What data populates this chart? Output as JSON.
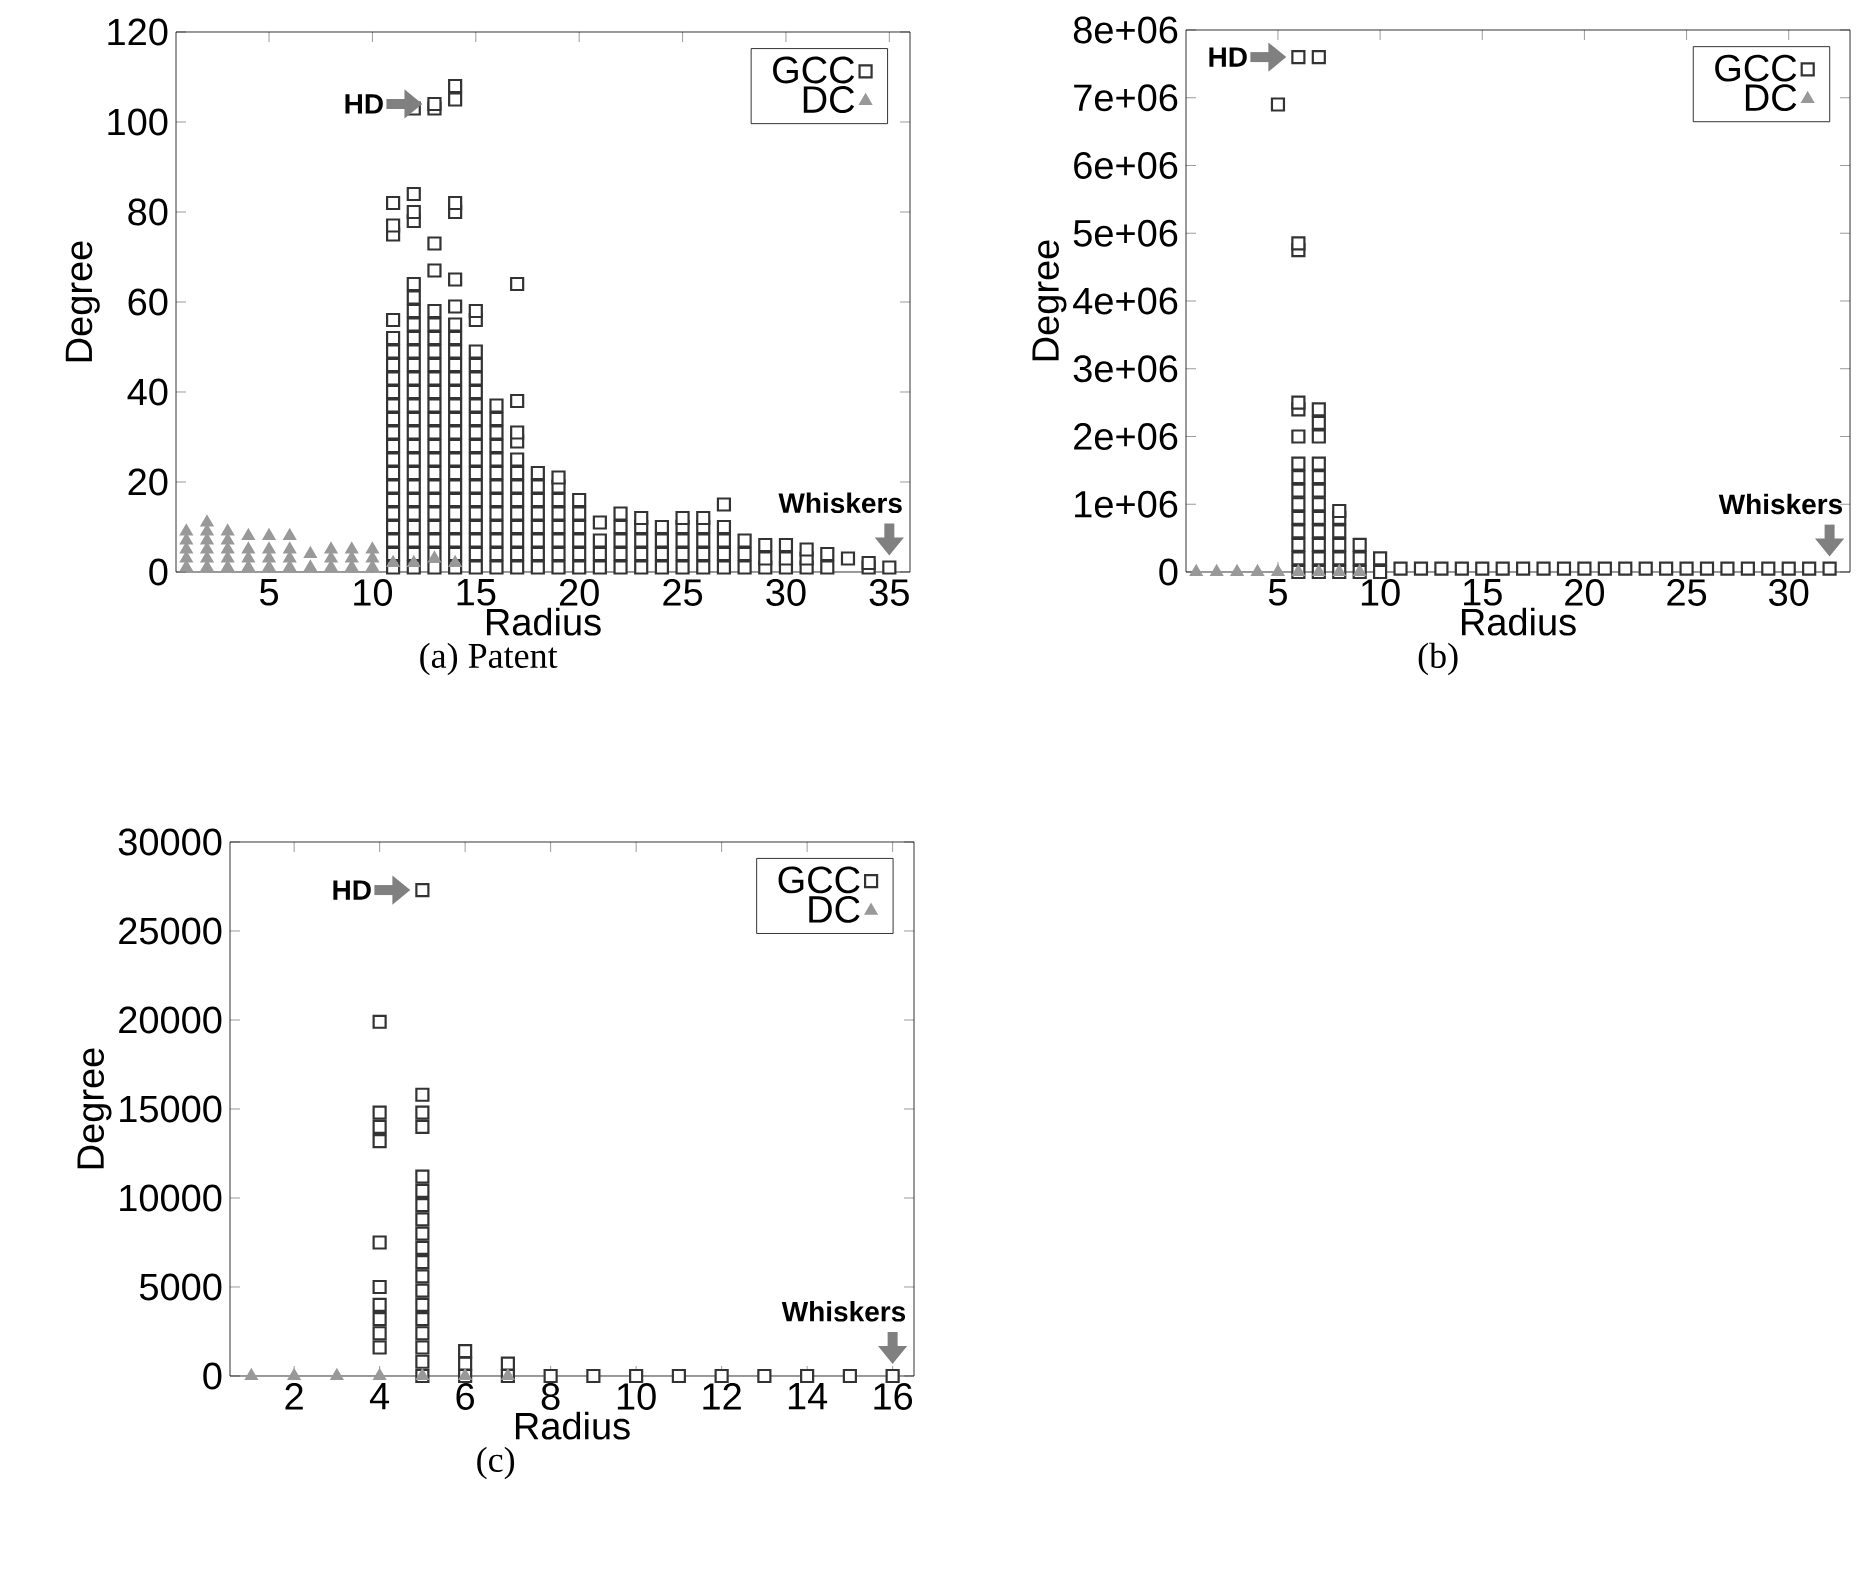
{
  "chart_data": [
    {
      "type": "scatter",
      "title": "(a) Patent",
      "xlabel": "Radius",
      "ylabel": "Degree",
      "xlim": [
        0.5,
        36
      ],
      "xticks": [
        5,
        10,
        15,
        20,
        25,
        30,
        35
      ],
      "ylim": [
        0,
        120
      ],
      "yticks": [
        0,
        20,
        40,
        60,
        80,
        100,
        120
      ],
      "legend": "top right",
      "annotations": [
        {
          "text": "HD",
          "x": 13,
          "y": 104
        },
        {
          "text": "Whiskers",
          "x": 35,
          "y": 1
        }
      ],
      "series": [
        {
          "name": "GCC",
          "color": "#333333",
          "marker": "square",
          "x": [
            11,
            11,
            11,
            11,
            11,
            11,
            11,
            11,
            11,
            11,
            11,
            11,
            11,
            11,
            11,
            11,
            11,
            11,
            11,
            11,
            11,
            11,
            12,
            12,
            12,
            12,
            12,
            12,
            12,
            12,
            12,
            12,
            12,
            12,
            12,
            12,
            12,
            12,
            12,
            12,
            12,
            12,
            12,
            12,
            12,
            12,
            12,
            12,
            13,
            13,
            13,
            13,
            13,
            13,
            13,
            13,
            13,
            13,
            13,
            13,
            13,
            13,
            13,
            13,
            13,
            13,
            13,
            13,
            13,
            13,
            13,
            13,
            14,
            14,
            14,
            14,
            14,
            14,
            14,
            14,
            14,
            14,
            14,
            14,
            14,
            14,
            14,
            14,
            14,
            14,
            14,
            14,
            14,
            14,
            14,
            14,
            14,
            15,
            15,
            15,
            15,
            15,
            15,
            15,
            15,
            15,
            15,
            15,
            15,
            15,
            15,
            15,
            15,
            15,
            15,
            15,
            16,
            16,
            16,
            16,
            16,
            16,
            16,
            16,
            16,
            16,
            16,
            16,
            16,
            17,
            17,
            17,
            17,
            17,
            17,
            17,
            17,
            17,
            17,
            17,
            17,
            17,
            18,
            18,
            18,
            18,
            18,
            18,
            18,
            18,
            19,
            19,
            19,
            19,
            19,
            19,
            19,
            19,
            20,
            20,
            20,
            20,
            20,
            20,
            21,
            21,
            21,
            21,
            22,
            22,
            22,
            22,
            22,
            23,
            23,
            23,
            23,
            23,
            24,
            24,
            24,
            24,
            25,
            25,
            25,
            25,
            25,
            26,
            26,
            26,
            26,
            26,
            27,
            27,
            27,
            27,
            27,
            28,
            28,
            28,
            29,
            29,
            29,
            30,
            30,
            30,
            31,
            31,
            31,
            32,
            32,
            33,
            34,
            34,
            35
          ],
          "values": [
            1,
            4,
            7,
            10,
            13,
            16,
            19,
            22,
            25,
            28,
            31,
            34,
            37,
            40,
            43,
            46,
            49,
            52,
            56,
            75,
            77,
            82,
            1,
            4,
            7,
            10,
            13,
            16,
            19,
            22,
            25,
            28,
            31,
            34,
            37,
            40,
            43,
            46,
            49,
            52,
            55,
            58,
            61,
            64,
            78,
            80,
            84,
            103,
            1,
            4,
            7,
            10,
            13,
            16,
            19,
            22,
            25,
            28,
            31,
            34,
            37,
            40,
            43,
            46,
            49,
            52,
            55,
            58,
            67,
            73,
            103,
            104,
            1,
            4,
            7,
            10,
            13,
            16,
            19,
            22,
            25,
            28,
            31,
            34,
            37,
            40,
            43,
            46,
            49,
            52,
            55,
            59,
            65,
            80,
            82,
            105,
            108,
            1,
            4,
            7,
            10,
            13,
            16,
            19,
            22,
            25,
            28,
            31,
            34,
            37,
            40,
            43,
            46,
            49,
            56,
            58,
            1,
            4,
            7,
            10,
            13,
            16,
            19,
            22,
            25,
            28,
            31,
            34,
            37,
            1,
            4,
            7,
            10,
            13,
            16,
            19,
            22,
            25,
            29,
            31,
            38,
            64,
            1,
            4,
            7,
            10,
            13,
            16,
            19,
            22,
            1,
            4,
            7,
            10,
            13,
            16,
            19,
            21,
            1,
            4,
            7,
            10,
            13,
            16,
            1,
            4,
            7,
            11,
            1,
            4,
            7,
            10,
            13,
            1,
            4,
            7,
            10,
            12,
            1,
            4,
            7,
            10,
            1,
            4,
            7,
            10,
            12,
            1,
            4,
            7,
            10,
            12,
            1,
            4,
            7,
            10,
            15,
            1,
            4,
            7,
            1,
            3,
            6,
            1,
            3,
            6,
            1,
            3,
            5,
            1,
            4,
            3,
            1,
            2,
            1
          ]
        },
        {
          "name": "DC",
          "color": "#999999",
          "marker": "triangle",
          "x": [
            1,
            1,
            1,
            1,
            1,
            2,
            2,
            2,
            2,
            2,
            2,
            3,
            3,
            3,
            3,
            3,
            4,
            4,
            4,
            4,
            5,
            5,
            5,
            5,
            6,
            6,
            6,
            6,
            7,
            7,
            8,
            8,
            8,
            9,
            9,
            9,
            10,
            10,
            10,
            11,
            12,
            13,
            14
          ],
          "values": [
            1,
            3,
            5,
            7,
            9,
            1,
            3,
            5,
            7,
            9,
            11,
            1,
            3,
            5,
            7,
            9,
            1,
            3,
            5,
            8,
            1,
            3,
            5,
            8,
            1,
            3,
            5,
            8,
            1,
            4,
            1,
            3,
            5,
            1,
            3,
            5,
            1,
            3,
            5,
            2,
            2,
            3,
            2
          ]
        }
      ]
    },
    {
      "type": "scatter",
      "title": "(b)",
      "xlabel": "Radius",
      "ylabel": "Degree",
      "xlim": [
        0.5,
        33
      ],
      "xticks": [
        5,
        10,
        15,
        20,
        25,
        30
      ],
      "ylim": [
        0,
        8000000
      ],
      "yticks": [
        0,
        {
          "value": 1000000,
          "label": "1e+06"
        },
        {
          "value": 2000000,
          "label": "2e+06"
        },
        {
          "value": 3000000,
          "label": "3e+06"
        },
        {
          "value": 4000000,
          "label": "4e+06"
        },
        {
          "value": 5000000,
          "label": "5e+06"
        },
        {
          "value": 6000000,
          "label": "6e+06"
        },
        {
          "value": 7000000,
          "label": "7e+06"
        },
        {
          "value": 8000000,
          "label": "8e+06"
        }
      ],
      "legend": "top right",
      "annotations": [
        {
          "text": "HD",
          "x": 6,
          "y": 7600000
        },
        {
          "text": "Whiskers",
          "x": 32,
          "y": 50000
        }
      ],
      "series": [
        {
          "name": "GCC",
          "color": "#333333",
          "marker": "square",
          "x": [
            5,
            6,
            6,
            6,
            6,
            6,
            6,
            6,
            6,
            6,
            6,
            6,
            6,
            6,
            6,
            6,
            7,
            7,
            7,
            7,
            7,
            7,
            7,
            7,
            7,
            7,
            7,
            7,
            7,
            8,
            8,
            8,
            8,
            8,
            8,
            9,
            9,
            9,
            10,
            10,
            11,
            12,
            13,
            14,
            15,
            16,
            17,
            18,
            19,
            20,
            21,
            22,
            23,
            24,
            25,
            26,
            27,
            28,
            29,
            30,
            31,
            32
          ],
          "values": [
            6900000,
            0,
            200000,
            400000,
            600000,
            800000,
            1000000,
            1200000,
            1400000,
            1600000,
            2000000,
            2400000,
            2500000,
            4750000,
            4850000,
            7600000,
            0,
            200000,
            400000,
            600000,
            800000,
            1000000,
            1200000,
            1400000,
            1600000,
            2000000,
            2200000,
            2400000,
            7600000,
            0,
            200000,
            400000,
            600000,
            800000,
            900000,
            0,
            200000,
            400000,
            0,
            200000,
            50000,
            50000,
            50000,
            50000,
            50000,
            50000,
            50000,
            50000,
            50000,
            50000,
            50000,
            50000,
            50000,
            50000,
            50000,
            50000,
            50000,
            50000,
            50000,
            50000,
            50000,
            50000
          ]
        },
        {
          "name": "DC",
          "color": "#999999",
          "marker": "triangle",
          "x": [
            1,
            2,
            3,
            4,
            5,
            6,
            7,
            8,
            9
          ],
          "values": [
            0,
            0,
            0,
            0,
            0,
            0,
            0,
            0,
            0
          ]
        }
      ]
    },
    {
      "type": "scatter",
      "title": "(c)",
      "xlabel": "Radius",
      "ylabel": "Degree",
      "xlim": [
        0.5,
        16.5
      ],
      "xticks": [
        2,
        4,
        6,
        8,
        10,
        12,
        14,
        16
      ],
      "ylim": [
        0,
        30000
      ],
      "yticks": [
        0,
        5000,
        10000,
        15000,
        20000,
        25000,
        30000
      ],
      "legend": "top right",
      "annotations": [
        {
          "text": "HD",
          "x": 5,
          "y": 27300
        },
        {
          "text": "Whiskers",
          "x": 16,
          "y": 0
        }
      ],
      "series": [
        {
          "name": "GCC",
          "color": "#333333",
          "marker": "square",
          "x": [
            4,
            4,
            4,
            4,
            4,
            4,
            4,
            4,
            4,
            4,
            5,
            5,
            5,
            5,
            5,
            5,
            5,
            5,
            5,
            5,
            5,
            5,
            5,
            5,
            5,
            5,
            5,
            5,
            5,
            6,
            6,
            6,
            7,
            7,
            8,
            9,
            10,
            11,
            12,
            13,
            14,
            15,
            16
          ],
          "values": [
            1600,
            2400,
            3200,
            4000,
            5000,
            7500,
            13200,
            14000,
            14800,
            19900,
            0,
            800,
            1600,
            2400,
            3200,
            4000,
            4800,
            5600,
            6400,
            7200,
            8000,
            8800,
            9600,
            10400,
            11200,
            14000,
            14800,
            15800,
            27300,
            0,
            700,
            1400,
            0,
            700,
            0,
            0,
            0,
            0,
            0,
            0,
            0,
            0,
            0
          ]
        },
        {
          "name": "DC",
          "color": "#999999",
          "marker": "triangle",
          "x": [
            1,
            2,
            3,
            4,
            5,
            6,
            7
          ],
          "values": [
            0,
            0,
            0,
            0,
            0,
            0,
            0
          ]
        }
      ]
    }
  ]
}
